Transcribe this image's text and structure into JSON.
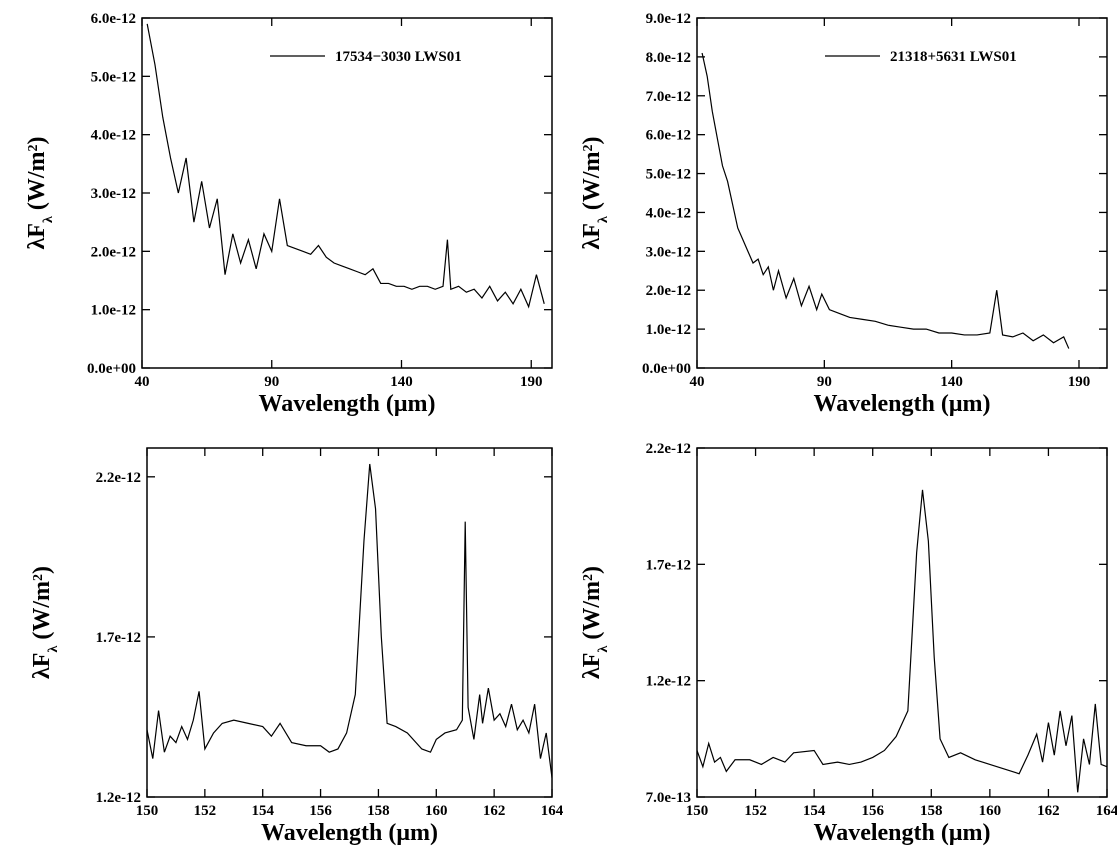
{
  "chart_data": [
    {
      "type": "line",
      "xlabel": "Wavelength (μm)",
      "ylabel": [
        "λF",
        "λ",
        " (W/m",
        "2",
        ")"
      ],
      "xlim": [
        40,
        198
      ],
      "xticks": [
        40,
        90,
        140,
        190
      ],
      "ylim": [
        0,
        6e-12
      ],
      "yticks": [
        {
          "value": 0,
          "label": "0.0e+00"
        },
        {
          "value": 1e-12,
          "label": "1.0e-12"
        },
        {
          "value": 2e-12,
          "label": "2.0e-12"
        },
        {
          "value": 3e-12,
          "label": "3.0e-12"
        },
        {
          "value": 4e-12,
          "label": "4.0e-12"
        },
        {
          "value": 5e-12,
          "label": "5.0e-12"
        },
        {
          "value": 6e-12,
          "label": "6.0e-12"
        }
      ],
      "x": [
        42,
        45,
        48,
        51,
        54,
        57,
        60,
        63,
        66,
        69,
        72,
        75,
        78,
        81,
        84,
        87,
        90,
        93,
        96,
        99,
        102,
        105,
        108,
        111,
        114,
        117,
        120,
        123,
        126,
        129,
        132,
        135,
        138,
        141,
        144,
        147,
        150,
        153,
        156,
        157.7,
        159,
        162,
        165,
        168,
        171,
        174,
        177,
        180,
        183,
        186,
        189,
        192,
        195
      ],
      "series": [
        {
          "name": "17534−3030 LWS01",
          "color": "#000000",
          "values": [
            5.9e-12,
            5.2e-12,
            4.3e-12,
            3.6e-12,
            3e-12,
            3.6e-12,
            2.5e-12,
            3.2e-12,
            2.4e-12,
            2.9e-12,
            1.6e-12,
            2.3e-12,
            1.8e-12,
            2.2e-12,
            1.7e-12,
            2.3e-12,
            2e-12,
            2.9e-12,
            2.1e-12,
            2.05e-12,
            2e-12,
            1.95e-12,
            2.1e-12,
            1.9e-12,
            1.8e-12,
            1.75e-12,
            1.7e-12,
            1.65e-12,
            1.6e-12,
            1.7e-12,
            1.45e-12,
            1.45e-12,
            1.4e-12,
            1.4e-12,
            1.35e-12,
            1.4e-12,
            1.4e-12,
            1.35e-12,
            1.4e-12,
            2.2e-12,
            1.35e-12,
            1.4e-12,
            1.3e-12,
            1.35e-12,
            1.2e-12,
            1.4e-12,
            1.15e-12,
            1.3e-12,
            1.1e-12,
            1.35e-12,
            1.05e-12,
            1.6e-12,
            1.1e-12
          ]
        }
      ]
    },
    {
      "type": "line",
      "xlabel": "Wavelength (μm)",
      "ylabel": [
        "λF",
        "λ",
        " (W/m",
        "2",
        ")"
      ],
      "xlim": [
        40,
        201
      ],
      "xticks": [
        40,
        90,
        140,
        190
      ],
      "ylim": [
        0,
        9e-12
      ],
      "yticks": [
        {
          "value": 0,
          "label": "0.0e+00"
        },
        {
          "value": 1e-12,
          "label": "1.0e-12"
        },
        {
          "value": 2e-12,
          "label": "2.0e-12"
        },
        {
          "value": 3e-12,
          "label": "3.0e-12"
        },
        {
          "value": 4e-12,
          "label": "4.0e-12"
        },
        {
          "value": 5e-12,
          "label": "5.0e-12"
        },
        {
          "value": 6e-12,
          "label": "6.0e-12"
        },
        {
          "value": 7e-12,
          "label": "7.0e-12"
        },
        {
          "value": 8e-12,
          "label": "8.0e-12"
        },
        {
          "value": 9e-12,
          "label": "9.0e-12"
        }
      ],
      "x": [
        42,
        44,
        46,
        48,
        50,
        52,
        54,
        56,
        58,
        60,
        62,
        64,
        66,
        68,
        70,
        72,
        75,
        78,
        81,
        84,
        87,
        89,
        92,
        96,
        100,
        105,
        110,
        115,
        120,
        125,
        130,
        135,
        140,
        145,
        150,
        155,
        157.7,
        160,
        164,
        168,
        172,
        176,
        180,
        184,
        186
      ],
      "series": [
        {
          "name": "21318+5631 LWS01",
          "color": "#000000",
          "values": [
            8.1e-12,
            7.5e-12,
            6.6e-12,
            5.9e-12,
            5.2e-12,
            4.8e-12,
            4.2e-12,
            3.6e-12,
            3.3e-12,
            3e-12,
            2.7e-12,
            2.8e-12,
            2.4e-12,
            2.6e-12,
            2e-12,
            2.5e-12,
            1.8e-12,
            2.3e-12,
            1.6e-12,
            2.1e-12,
            1.5e-12,
            1.9e-12,
            1.5e-12,
            1.4e-12,
            1.3e-12,
            1.25e-12,
            1.2e-12,
            1.1e-12,
            1.05e-12,
            1e-12,
            1e-12,
            9e-13,
            9e-13,
            8.5e-13,
            8.5e-13,
            9e-13,
            2e-12,
            8.5e-13,
            8e-13,
            9e-13,
            7e-13,
            8.5e-13,
            6.5e-13,
            8e-13,
            5e-13
          ]
        }
      ]
    },
    {
      "type": "line",
      "xlabel": "Wavelength (μm)",
      "ylabel": [
        "λF",
        "λ",
        " (W/m",
        "2",
        ")"
      ],
      "xlim": [
        150,
        164
      ],
      "xticks": [
        150,
        152,
        154,
        156,
        158,
        160,
        162,
        164
      ],
      "ylim": [
        1.2e-12,
        2.29e-12
      ],
      "yticks": [
        {
          "value": 1.2e-12,
          "label": "1.2e-12"
        },
        {
          "value": 1.7e-12,
          "label": "1.7e-12"
        },
        {
          "value": 2.2e-12,
          "label": "2.2e-12"
        }
      ],
      "x": [
        150,
        150.2,
        150.4,
        150.6,
        150.8,
        151,
        151.2,
        151.4,
        151.6,
        151.8,
        152,
        152.3,
        152.6,
        153,
        153.5,
        154,
        154.3,
        154.6,
        155,
        155.5,
        156,
        156.3,
        156.6,
        156.9,
        157.2,
        157.5,
        157.7,
        157.9,
        158.1,
        158.3,
        158.6,
        159,
        159.5,
        159.8,
        160,
        160.3,
        160.7,
        160.9,
        161,
        161.1,
        161.3,
        161.5,
        161.6,
        161.8,
        162,
        162.2,
        162.4,
        162.6,
        162.8,
        163,
        163.2,
        163.4,
        163.6,
        163.8,
        164
      ],
      "series": [
        {
          "color": "#000000",
          "values": [
            1.41e-12,
            1.32e-12,
            1.47e-12,
            1.34e-12,
            1.39e-12,
            1.37e-12,
            1.42e-12,
            1.38e-12,
            1.44e-12,
            1.53e-12,
            1.35e-12,
            1.4e-12,
            1.43e-12,
            1.44e-12,
            1.43e-12,
            1.42e-12,
            1.39e-12,
            1.43e-12,
            1.37e-12,
            1.36e-12,
            1.36e-12,
            1.34e-12,
            1.35e-12,
            1.4e-12,
            1.52e-12,
            2e-12,
            2.24e-12,
            2.1e-12,
            1.7e-12,
            1.43e-12,
            1.42e-12,
            1.4e-12,
            1.35e-12,
            1.34e-12,
            1.38e-12,
            1.4e-12,
            1.41e-12,
            1.44e-12,
            2.06e-12,
            1.48e-12,
            1.38e-12,
            1.52e-12,
            1.43e-12,
            1.54e-12,
            1.44e-12,
            1.46e-12,
            1.42e-12,
            1.49e-12,
            1.41e-12,
            1.44e-12,
            1.4e-12,
            1.49e-12,
            1.32e-12,
            1.4e-12,
            1.26e-12
          ]
        }
      ]
    },
    {
      "type": "line",
      "xlabel": "Wavelength (μm)",
      "ylabel": [
        "λF",
        "λ",
        " (W/m",
        "2",
        ")"
      ],
      "xlim": [
        150,
        164
      ],
      "xticks": [
        150,
        152,
        154,
        156,
        158,
        160,
        162,
        164
      ],
      "ylim": [
        7e-13,
        2.2e-12
      ],
      "yticks": [
        {
          "value": 7e-13,
          "label": "7.0e-13"
        },
        {
          "value": 1.2e-12,
          "label": "1.2e-12"
        },
        {
          "value": 1.7e-12,
          "label": "1.7e-12"
        },
        {
          "value": 2.2e-12,
          "label": "2.2e-12"
        }
      ],
      "x": [
        150,
        150.2,
        150.4,
        150.6,
        150.8,
        151,
        151.3,
        151.8,
        152.2,
        152.6,
        153,
        153.3,
        154,
        154.3,
        154.8,
        155.2,
        155.6,
        156,
        156.4,
        156.8,
        157.2,
        157.5,
        157.7,
        157.9,
        158.1,
        158.3,
        158.6,
        159,
        159.5,
        160,
        160.5,
        161,
        161.3,
        161.6,
        161.8,
        162,
        162.2,
        162.4,
        162.6,
        162.8,
        163,
        163.2,
        163.4,
        163.6,
        163.8,
        164
      ],
      "series": [
        {
          "color": "#000000",
          "values": [
            9e-13,
            8.3e-13,
            9.3e-13,
            8.5e-13,
            8.7e-13,
            8.1e-13,
            8.6e-13,
            8.6e-13,
            8.4e-13,
            8.7e-13,
            8.5e-13,
            8.9e-13,
            9e-13,
            8.4e-13,
            8.5e-13,
            8.4e-13,
            8.5e-13,
            8.7e-13,
            9e-13,
            9.6e-13,
            1.07e-12,
            1.75e-12,
            2.02e-12,
            1.8e-12,
            1.3e-12,
            9.5e-13,
            8.7e-13,
            8.9e-13,
            8.6e-13,
            8.4e-13,
            8.2e-13,
            8e-13,
            8.8e-13,
            9.7e-13,
            8.5e-13,
            1.02e-12,
            8.8e-13,
            1.07e-12,
            9.2e-13,
            1.05e-12,
            7.2e-13,
            9.5e-13,
            8.4e-13,
            1.1e-12,
            8.4e-13,
            8.3e-13
          ]
        }
      ]
    }
  ]
}
